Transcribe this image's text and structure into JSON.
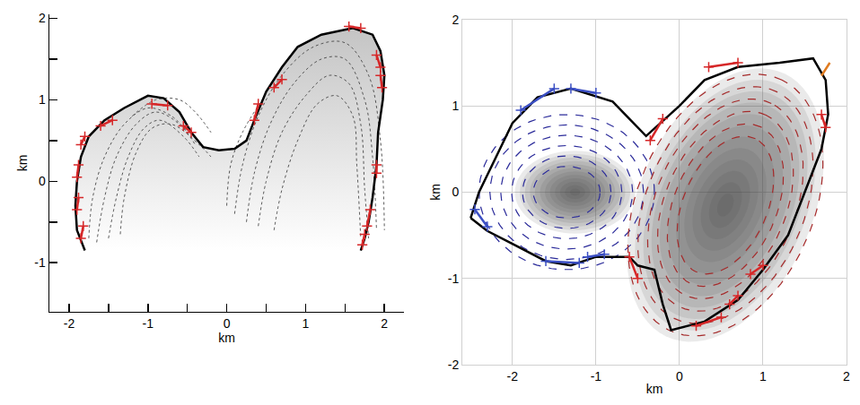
{
  "chart_data": [
    {
      "type": "scatter",
      "xlabel": "km",
      "ylabel": "km",
      "xlim": [
        -2.25,
        2.25
      ],
      "ylim": [
        -1.6,
        2.05
      ],
      "xticks": [
        -2,
        -1,
        0,
        1,
        2
      ],
      "yticks": [
        -1,
        0,
        1,
        2
      ],
      "minor_xticks": [
        -1.5,
        -0.5,
        0.5,
        1.5
      ],
      "minor_yticks": [
        -0.5,
        0.5,
        1.5
      ],
      "grid": false,
      "outline": {
        "color": "#000000",
        "x": [
          -1.8,
          -1.9,
          -1.92,
          -1.9,
          -1.85,
          -1.75,
          -1.55,
          -1.3,
          -1.0,
          -0.8,
          -0.6,
          -0.45,
          -0.3,
          -0.1,
          0.1,
          0.25,
          0.35,
          0.5,
          0.7,
          0.9,
          1.2,
          1.6,
          1.85,
          1.95,
          2.0,
          1.98,
          1.92,
          1.9,
          1.85,
          1.8,
          1.75,
          1.7
        ],
        "y": [
          -0.85,
          -0.6,
          -0.3,
          0.0,
          0.3,
          0.55,
          0.75,
          0.9,
          1.05,
          1.02,
          0.85,
          0.6,
          0.42,
          0.38,
          0.4,
          0.5,
          0.75,
          1.1,
          1.4,
          1.65,
          1.8,
          1.88,
          1.8,
          1.6,
          1.3,
          1.0,
          0.6,
          0.2,
          -0.2,
          -0.5,
          -0.7,
          -0.85
        ],
        "fill": [
          "#ffffff",
          "#c4c4c4"
        ]
      },
      "curves": [
        {
          "color": "#555555",
          "line_style": "dot",
          "lines": [
            [
              [
                -1.75,
                -0.7
              ],
              [
                -1.7,
                -0.2
              ],
              [
                -1.55,
                0.3
              ],
              [
                -1.3,
                0.7
              ],
              [
                -1.0,
                0.9
              ],
              [
                -0.7,
                0.8
              ],
              [
                -0.5,
                0.6
              ]
            ],
            [
              [
                -1.65,
                -0.75
              ],
              [
                -1.55,
                -0.2
              ],
              [
                -1.4,
                0.3
              ],
              [
                -1.15,
                0.7
              ],
              [
                -0.9,
                0.85
              ],
              [
                -0.6,
                0.7
              ],
              [
                -0.4,
                0.45
              ]
            ],
            [
              [
                -1.5,
                -0.7
              ],
              [
                -1.4,
                -0.2
              ],
              [
                -1.25,
                0.3
              ],
              [
                -1.05,
                0.65
              ],
              [
                -0.85,
                0.75
              ],
              [
                -0.55,
                0.55
              ],
              [
                -0.35,
                0.3
              ]
            ],
            [
              [
                -1.35,
                -0.65
              ],
              [
                -1.3,
                -0.2
              ],
              [
                -1.15,
                0.35
              ],
              [
                -0.95,
                0.65
              ],
              [
                -0.7,
                0.7
              ],
              [
                -0.35,
                0.45
              ],
              [
                -0.2,
                0.3
              ]
            ],
            [
              [
                -1.2,
                0.8
              ],
              [
                -0.9,
                1.0
              ],
              [
                -0.6,
                1.0
              ],
              [
                -0.4,
                0.85
              ],
              [
                -0.2,
                0.6
              ]
            ],
            [
              [
                0.1,
                -0.4
              ],
              [
                0.2,
                0.2
              ],
              [
                0.4,
                0.8
              ],
              [
                0.7,
                1.3
              ],
              [
                1.1,
                1.65
              ],
              [
                1.5,
                1.7
              ],
              [
                1.8,
                1.3
              ],
              [
                1.95,
                0.5
              ],
              [
                2.0,
                -0.6
              ]
            ],
            [
              [
                0.25,
                -0.5
              ],
              [
                0.35,
                0.1
              ],
              [
                0.55,
                0.7
              ],
              [
                0.85,
                1.2
              ],
              [
                1.2,
                1.5
              ],
              [
                1.5,
                1.5
              ],
              [
                1.75,
                1.0
              ],
              [
                1.85,
                0.3
              ],
              [
                1.9,
                -0.6
              ]
            ],
            [
              [
                0.4,
                -0.55
              ],
              [
                0.5,
                0.0
              ],
              [
                0.7,
                0.6
              ],
              [
                1.0,
                1.05
              ],
              [
                1.3,
                1.3
              ],
              [
                1.55,
                1.2
              ],
              [
                1.7,
                0.7
              ],
              [
                1.75,
                -0.1
              ],
              [
                1.8,
                -0.7
              ]
            ],
            [
              [
                0.6,
                -0.6
              ],
              [
                0.7,
                -0.1
              ],
              [
                0.9,
                0.5
              ],
              [
                1.15,
                0.95
              ],
              [
                1.4,
                1.05
              ],
              [
                1.6,
                0.8
              ],
              [
                1.65,
                0.2
              ],
              [
                1.7,
                -0.7
              ]
            ],
            [
              [
                0.0,
                -0.3
              ],
              [
                0.05,
                0.2
              ],
              [
                0.2,
                0.6
              ],
              [
                0.45,
                1.0
              ]
            ]
          ]
        }
      ],
      "ellipses": [],
      "blobs": [],
      "segments": [
        {
          "color": "#d62728",
          "marker": "cross",
          "lines": [
            [
              -1.85,
              -0.7,
              -1.82,
              -0.55
            ],
            [
              -1.9,
              -0.35,
              -1.88,
              -0.2
            ],
            [
              -1.9,
              0.05,
              -1.88,
              0.2
            ],
            [
              -1.85,
              0.45,
              -1.8,
              0.55
            ],
            [
              -1.6,
              0.68,
              -1.45,
              0.75
            ],
            [
              -0.95,
              0.95,
              -0.75,
              0.93
            ],
            [
              -0.55,
              0.68,
              -0.45,
              0.6
            ],
            [
              0.35,
              0.75,
              0.4,
              0.95
            ],
            [
              0.6,
              1.15,
              0.7,
              1.25
            ],
            [
              1.55,
              1.9,
              1.7,
              1.88
            ],
            [
              1.9,
              1.55,
              1.95,
              1.4
            ],
            [
              1.95,
              1.3,
              1.97,
              1.15
            ],
            [
              1.9,
              0.2,
              1.9,
              0.1
            ],
            [
              1.82,
              -0.35,
              1.78,
              -0.55
            ],
            [
              1.75,
              -0.65,
              1.72,
              -0.78
            ]
          ]
        }
      ]
    },
    {
      "type": "scatter",
      "xlabel": "km",
      "ylabel": "km",
      "xlim": [
        -2.6,
        2.0
      ],
      "ylim": [
        -2,
        2
      ],
      "xticks": [
        -2,
        -1,
        0,
        1,
        2
      ],
      "yticks": [
        -2,
        -1,
        0,
        1,
        2
      ],
      "minor_xticks": [],
      "minor_yticks": [],
      "grid": true,
      "outline": {
        "color": "#000000",
        "x": [
          -2.5,
          -2.4,
          -2.2,
          -2.0,
          -1.7,
          -1.3,
          -0.8,
          -0.55,
          -0.4,
          0.0,
          0.3,
          0.7,
          1.2,
          1.6,
          1.75,
          1.78,
          1.7,
          1.5,
          1.3,
          1.0,
          0.7,
          0.3,
          -0.1,
          -0.2,
          -0.3,
          -0.5,
          -0.6,
          -0.8,
          -1.0,
          -1.3,
          -1.6,
          -2.0,
          -2.3,
          -2.5
        ],
        "y": [
          -0.3,
          0.0,
          0.4,
          0.8,
          1.1,
          1.2,
          1.05,
          0.8,
          0.65,
          1.0,
          1.3,
          1.45,
          1.5,
          1.55,
          1.3,
          0.9,
          0.5,
          0.0,
          -0.5,
          -0.9,
          -1.25,
          -1.5,
          -1.6,
          -1.3,
          -0.9,
          -0.85,
          -0.75,
          -0.75,
          -0.75,
          -0.85,
          -0.8,
          -0.6,
          -0.45,
          -0.3
        ],
        "fill": []
      },
      "curves": [],
      "ellipses": [
        {
          "color": "#2b2b9a",
          "line_style": "dash",
          "cx": -1.35,
          "cy": 0.0,
          "axis_angle": 0,
          "axes": [
            [
              0.4,
              0.3
            ],
            [
              0.53,
              0.42
            ],
            [
              0.66,
              0.54
            ],
            [
              0.79,
              0.66
            ],
            [
              0.92,
              0.78
            ],
            [
              1.05,
              0.9
            ]
          ]
        },
        {
          "color": "#a52a2a",
          "line_style": "dash",
          "cx": 0.55,
          "cy": -0.15,
          "axis_angle": 65,
          "axes": [
            [
              0.85,
              0.5
            ],
            [
              1.0,
              0.61
            ],
            [
              1.15,
              0.72
            ],
            [
              1.3,
              0.83
            ],
            [
              1.45,
              0.94
            ],
            [
              1.6,
              1.05
            ]
          ]
        }
      ],
      "blobs": [
        {
          "color": "#3c3c3c",
          "cx": -1.25,
          "cy": 0.0,
          "axis_angle": 0,
          "a": 0.45,
          "b": 0.3
        },
        {
          "color": "#3c3c3c",
          "cx": 0.55,
          "cy": -0.15,
          "axis_angle": 65,
          "a": 1.05,
          "b": 0.65
        }
      ],
      "segments": [
        {
          "color": "#3b4fc4",
          "marker": "cross",
          "lines": [
            [
              -1.9,
              0.95,
              -1.5,
              1.2
            ],
            [
              -1.3,
              1.2,
              -1.0,
              1.15
            ],
            [
              -2.45,
              -0.2,
              -2.3,
              -0.4
            ],
            [
              -1.6,
              -0.8,
              -1.2,
              -0.82
            ],
            [
              -1.1,
              -0.75,
              -0.9,
              -0.72
            ]
          ]
        },
        {
          "color": "#d62728",
          "marker": "cross",
          "lines": [
            [
              -0.6,
              -0.75,
              -0.5,
              -1.0
            ],
            [
              -0.35,
              0.6,
              -0.2,
              0.85
            ],
            [
              0.35,
              1.45,
              0.7,
              1.5
            ],
            [
              1.7,
              0.9,
              1.75,
              0.75
            ],
            [
              0.85,
              -0.95,
              1.0,
              -0.85
            ],
            [
              0.2,
              -1.55,
              0.5,
              -1.45
            ],
            [
              0.6,
              -1.3,
              0.7,
              -1.2
            ]
          ]
        },
        {
          "color": "#e07b20",
          "marker": "none",
          "lines": [
            [
              1.7,
              1.35,
              1.8,
              1.5
            ]
          ]
        }
      ]
    }
  ]
}
